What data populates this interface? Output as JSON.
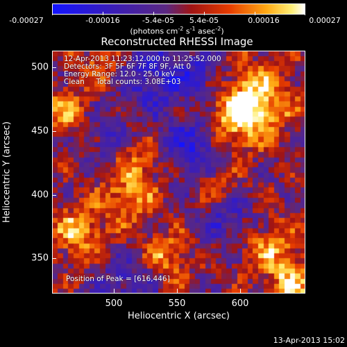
{
  "colorbar": {
    "ticks": [
      "-0.00027",
      "-0.00016",
      "-5.4e-05",
      "5.4e-05",
      "0.00016",
      "0.00027"
    ],
    "units_prefix": "(photons cm",
    "units_sup1": "-2",
    "units_mid1": " s",
    "units_sup2": "-1",
    "units_mid2": " asec",
    "units_sup3": "-2",
    "units_suffix": ")"
  },
  "title": "Reconstructed RHESSI Image",
  "annotations": {
    "line1": "12-Apr-2013 11:23:12.000 to 11:25:52.000",
    "line2": "Detectors: 3F 5F 6F 7F 8F 9F, Att 0",
    "line3": "Energy Range: 12.0 - 25.0 keV",
    "line4": "Clean     Total counts: 3.08E+03",
    "peak": "Position of Peak = [616,446]"
  },
  "axes": {
    "x_title": "Heliocentric X (arcsec)",
    "y_title": "Heliocentric Y (arcsec)",
    "x_ticks": [
      "500",
      "550",
      "600"
    ],
    "y_ticks": [
      "500",
      "450",
      "400",
      "350"
    ]
  },
  "timestamp": "13-Apr-2013 15:02",
  "colors": {
    "background": "#000000",
    "foreground": "#ffffff"
  }
}
